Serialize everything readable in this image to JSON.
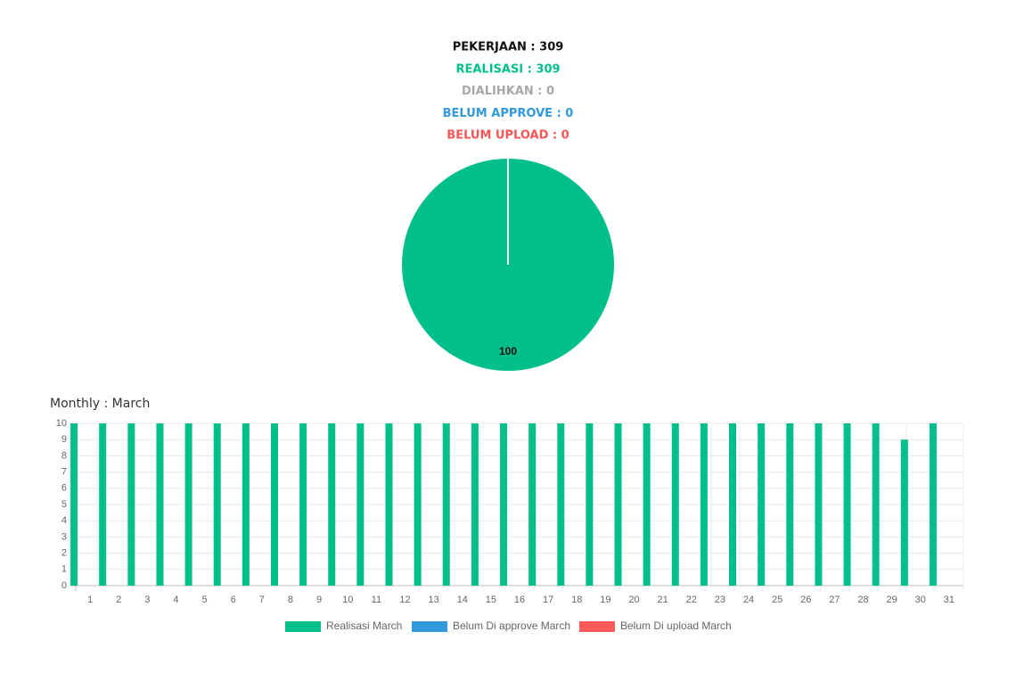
{
  "summary": [
    {
      "text": "PEKERJAAN : 309",
      "color": "#111111"
    },
    {
      "text": "REALISASI : 309",
      "color": "#00bf8a"
    },
    {
      "text": "DIALIHKAN : 0",
      "color": "#a8a8a8"
    },
    {
      "text": "BELUM APPROVE : 0",
      "color": "#3399dd"
    },
    {
      "text": "BELUM UPLOAD : 0",
      "color": "#f55555"
    }
  ],
  "chart_data": [
    {
      "type": "pie",
      "values": [
        100
      ],
      "colors": [
        "#00bf8a"
      ]
    },
    {
      "type": "bar",
      "title": "Monthly : March",
      "categories": [
        "1",
        "2",
        "3",
        "4",
        "5",
        "6",
        "7",
        "8",
        "9",
        "10",
        "11",
        "12",
        "13",
        "14",
        "15",
        "16",
        "17",
        "18",
        "19",
        "20",
        "21",
        "22",
        "23",
        "24",
        "25",
        "26",
        "27",
        "28",
        "29",
        "30",
        "31"
      ],
      "series": [
        {
          "name": "Realisasi March",
          "color": "#00bf8a",
          "values": [
            10,
            10,
            10,
            10,
            10,
            10,
            10,
            10,
            10,
            10,
            10,
            10,
            10,
            10,
            10,
            10,
            10,
            10,
            10,
            10,
            10,
            10,
            10,
            10,
            10,
            10,
            10,
            10,
            10,
            9,
            10
          ]
        },
        {
          "name": "Belum Di approve March",
          "color": "#3399dd",
          "values": [
            0,
            0,
            0,
            0,
            0,
            0,
            0,
            0,
            0,
            0,
            0,
            0,
            0,
            0,
            0,
            0,
            0,
            0,
            0,
            0,
            0,
            0,
            0,
            0,
            0,
            0,
            0,
            0,
            0,
            0,
            0
          ]
        },
        {
          "name": "Belum Di upload March",
          "color": "#ff5a5a",
          "values": [
            0,
            0,
            0,
            0,
            0,
            0,
            0,
            0,
            0,
            0,
            0,
            0,
            0,
            0,
            0,
            0,
            0,
            0,
            0,
            0,
            0,
            0,
            0,
            0,
            0,
            0,
            0,
            0,
            0,
            0,
            0
          ]
        }
      ],
      "ylim": [
        0,
        10
      ],
      "yticks": [
        0,
        1,
        2,
        3,
        4,
        5,
        6,
        7,
        8,
        9,
        10
      ],
      "grid": true
    }
  ]
}
